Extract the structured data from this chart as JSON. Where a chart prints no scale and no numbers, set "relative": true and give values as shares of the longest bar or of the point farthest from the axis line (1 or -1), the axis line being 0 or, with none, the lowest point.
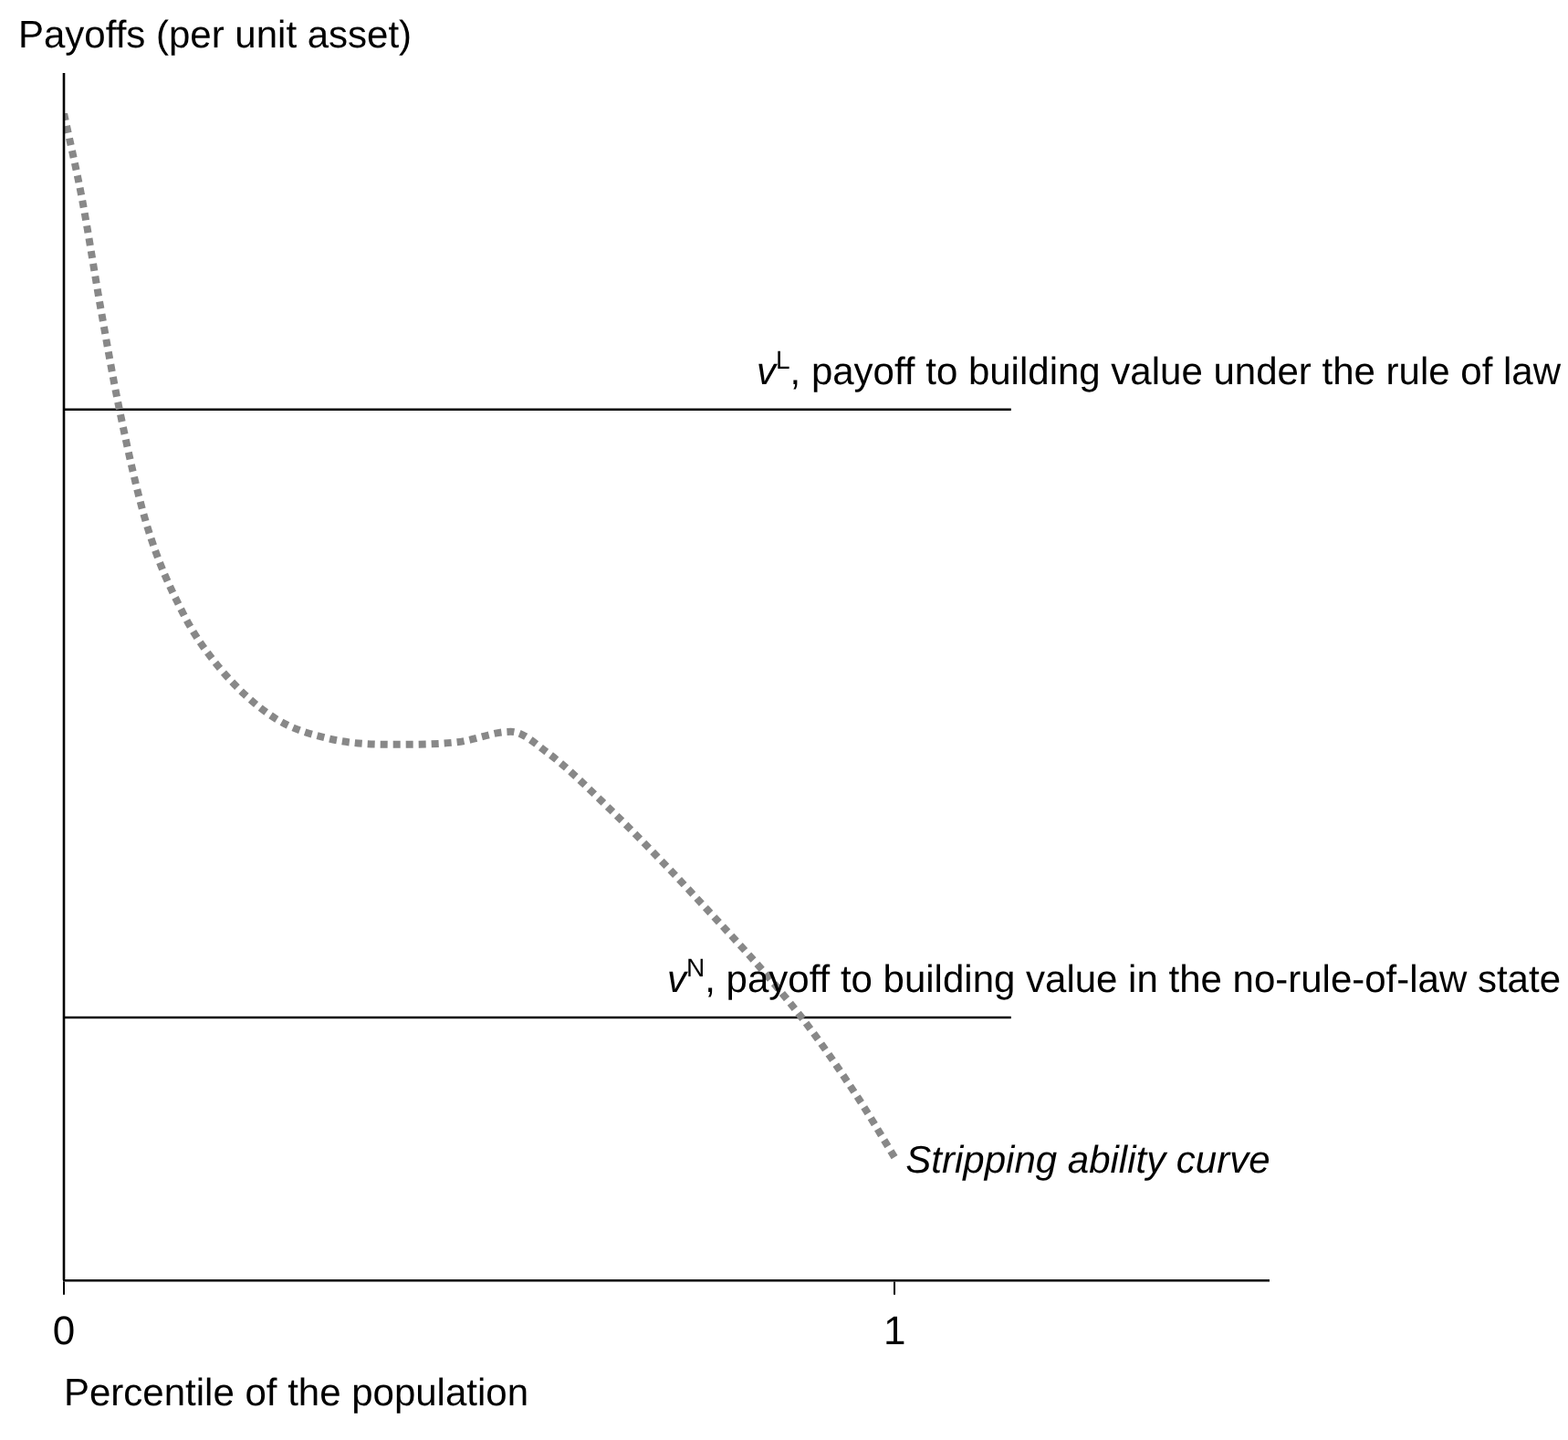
{
  "chart_data": {
    "type": "line",
    "relative": true,
    "xlabel": "Percentile of the population",
    "ylabel": "Payoffs (per unit asset)",
    "xlim": [
      0,
      1.45
    ],
    "xticks": [
      0,
      1
    ],
    "grid": false,
    "legend": false,
    "marker": "none",
    "series": [
      {
        "name": "Stripping ability curve",
        "color": "#888888",
        "line_style": "dotted",
        "x": [
          0,
          0.022,
          0.044,
          0.066,
          0.099,
          0.143,
          0.187,
          0.253,
          0.319,
          0.396,
          0.473,
          0.538,
          0.582,
          0.648,
          0.758,
          0.888,
          0.956,
          1.0
        ],
        "values": [
          1.0,
          0.926,
          0.834,
          0.749,
          0.649,
          0.572,
          0.525,
          0.482,
          0.464,
          0.459,
          0.461,
          0.47,
          0.452,
          0.41,
          0.33,
          0.225,
          0.156,
          0.105
        ]
      },
      {
        "name": "v$^{L}$, payoff to building value under the rule of law",
        "color": "#000000",
        "line_style": "solid",
        "x": [
          0,
          1.14
        ],
        "values": [
          0.746,
          0.746
        ]
      },
      {
        "name": "v$^{N}$, payoff to building value in the no-rule-of-law state",
        "color": "#000000",
        "line_style": "solid",
        "x": [
          0,
          1.14
        ],
        "values": [
          0.225,
          0.225
        ]
      }
    ]
  }
}
